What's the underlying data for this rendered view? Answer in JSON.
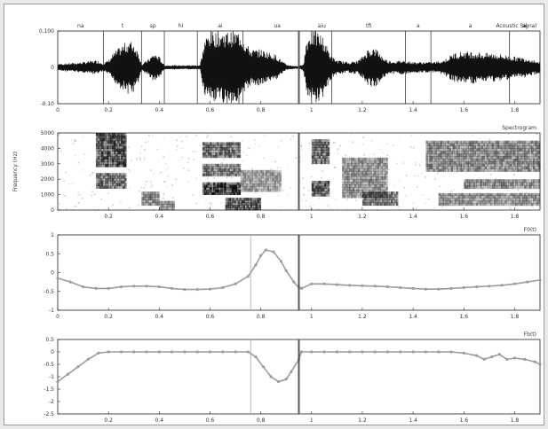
{
  "colors": {
    "ink": "#222222",
    "mark": "#9c9c9c",
    "divider": "#555555",
    "guide": "#b8b8b8",
    "frame": "#9a9a9a"
  },
  "segment_labels": [
    "na",
    "t",
    "sp",
    "hi",
    "ai",
    "ua",
    "aiu",
    "tfi",
    "a",
    "a",
    "ai",
    "ai"
  ],
  "segment_boundaries": [
    0.18,
    0.33,
    0.42,
    0.55,
    0.73,
    1.0,
    1.08,
    1.37,
    1.47,
    1.78
  ],
  "divider_time": 0.95,
  "chart_data": [
    {
      "type": "area",
      "name": "waveform",
      "title": "Acoustic Signal",
      "xlim": [
        0,
        1.9
      ],
      "ylim": [
        -0.1,
        0.1
      ],
      "yticks": [
        0.1,
        0,
        -0.1
      ],
      "ytick_labels": [
        "0.100",
        "0",
        "-0.10"
      ],
      "xticks": [
        0,
        0.2,
        0.4,
        0.6,
        0.8,
        1.0,
        1.2,
        1.4,
        1.6,
        1.8
      ],
      "xtick_labels": [
        "0",
        "0.2",
        "0.4",
        "0.6",
        "0.8",
        "1",
        "1.2",
        "1.4",
        "1.6",
        "1.8"
      ],
      "envelope": {
        "x": [
          0.0,
          0.05,
          0.1,
          0.15,
          0.18,
          0.2,
          0.22,
          0.25,
          0.28,
          0.3,
          0.32,
          0.33,
          0.36,
          0.38,
          0.4,
          0.42,
          0.44,
          0.48,
          0.52,
          0.56,
          0.58,
          0.6,
          0.62,
          0.64,
          0.66,
          0.68,
          0.7,
          0.72,
          0.74,
          0.76,
          0.78,
          0.8,
          0.82,
          0.84,
          0.86,
          0.88,
          0.9,
          0.92,
          0.94,
          0.95,
          0.96,
          0.97,
          0.98,
          1.0,
          1.02,
          1.04,
          1.06,
          1.08,
          1.1,
          1.14,
          1.18,
          1.2,
          1.22,
          1.24,
          1.26,
          1.28,
          1.3,
          1.32,
          1.34,
          1.36,
          1.38,
          1.4,
          1.44,
          1.48,
          1.52,
          1.56,
          1.6,
          1.64,
          1.68,
          1.72,
          1.76,
          1.8,
          1.84,
          1.88,
          1.9
        ],
        "y": [
          0.01,
          0.012,
          0.015,
          0.02,
          0.012,
          0.02,
          0.04,
          0.06,
          0.075,
          0.07,
          0.04,
          0.008,
          0.025,
          0.04,
          0.03,
          0.006,
          0.006,
          0.006,
          0.006,
          0.006,
          0.08,
          0.1,
          0.1,
          0.1,
          0.1,
          0.1,
          0.1,
          0.1,
          0.07,
          0.05,
          0.05,
          0.05,
          0.045,
          0.04,
          0.035,
          0.02,
          0.008,
          0.005,
          0.004,
          0.004,
          0.006,
          0.015,
          0.08,
          0.1,
          0.1,
          0.09,
          0.06,
          0.03,
          0.02,
          0.015,
          0.018,
          0.03,
          0.05,
          0.055,
          0.05,
          0.03,
          0.02,
          0.018,
          0.018,
          0.02,
          0.018,
          0.015,
          0.015,
          0.015,
          0.02,
          0.04,
          0.045,
          0.045,
          0.04,
          0.04,
          0.035,
          0.03,
          0.028,
          0.02,
          0.015
        ]
      }
    },
    {
      "type": "heatmap",
      "name": "spectrogram",
      "title": "Spectrogram",
      "xlim": [
        0,
        1.9
      ],
      "ylim": [
        0,
        5000
      ],
      "yticks": [
        0,
        1000,
        2000,
        3000,
        4000,
        5000
      ],
      "ytick_labels": [
        "0",
        "1000",
        "2000",
        "3000",
        "4000",
        "5000"
      ],
      "ylabel": "Frequency (Hz)",
      "xticks": [
        0.2,
        0.4,
        0.6,
        0.8,
        1.0,
        1.2,
        1.4,
        1.6,
        1.8
      ],
      "xtick_labels": [
        "0.2",
        "0.4",
        "0.6",
        "0.8",
        "1",
        "1.2",
        "1.4",
        "1.6",
        "1.8"
      ],
      "bands": [
        {
          "t0": 0.15,
          "t1": 0.27,
          "f0": 2800,
          "f1": 5000,
          "level": 0.85
        },
        {
          "t0": 0.15,
          "t1": 0.27,
          "f0": 1400,
          "f1": 2400,
          "level": 0.7
        },
        {
          "t0": 0.33,
          "t1": 0.4,
          "f0": 300,
          "f1": 1200,
          "level": 0.55
        },
        {
          "t0": 0.4,
          "t1": 0.46,
          "f0": 0,
          "f1": 600,
          "level": 0.5
        },
        {
          "t0": 0.57,
          "t1": 0.72,
          "f0": 3400,
          "f1": 4400,
          "level": 0.7
        },
        {
          "t0": 0.57,
          "t1": 0.72,
          "f0": 2200,
          "f1": 3000,
          "level": 0.65
        },
        {
          "t0": 0.57,
          "t1": 0.72,
          "f0": 1000,
          "f1": 1800,
          "level": 0.95
        },
        {
          "t0": 0.66,
          "t1": 0.8,
          "f0": 0,
          "f1": 800,
          "level": 0.8
        },
        {
          "t0": 0.72,
          "t1": 0.88,
          "f0": 1200,
          "f1": 2600,
          "level": 0.45
        },
        {
          "t0": 1.0,
          "t1": 1.07,
          "f0": 3000,
          "f1": 4600,
          "level": 0.7
        },
        {
          "t0": 1.0,
          "t1": 1.07,
          "f0": 900,
          "f1": 1900,
          "level": 0.8
        },
        {
          "t0": 1.12,
          "t1": 1.3,
          "f0": 800,
          "f1": 3400,
          "level": 0.5
        },
        {
          "t0": 1.2,
          "t1": 1.34,
          "f0": 300,
          "f1": 1200,
          "level": 0.65
        },
        {
          "t0": 1.45,
          "t1": 1.9,
          "f0": 2500,
          "f1": 4500,
          "level": 0.55
        },
        {
          "t0": 1.5,
          "t1": 1.9,
          "f0": 300,
          "f1": 1100,
          "level": 0.5
        },
        {
          "t0": 1.6,
          "t1": 1.9,
          "f0": 1400,
          "f1": 2000,
          "level": 0.55
        }
      ]
    },
    {
      "type": "line",
      "name": "pitch-track",
      "title": "F0(t)",
      "xlim": [
        0,
        1.9
      ],
      "ylim": [
        -1,
        1
      ],
      "yticks": [
        1,
        0.5,
        0,
        -0.5,
        -1
      ],
      "ytick_labels": [
        "1",
        "0.5",
        "0",
        "-0.5",
        "-1"
      ],
      "xticks": [
        0,
        0.2,
        0.4,
        0.6,
        0.8,
        1.0,
        1.2,
        1.4,
        1.6,
        1.8
      ],
      "xtick_labels": [
        "0",
        "0.2",
        "0.4",
        "0.6",
        "0.8",
        "1",
        "1.2",
        "1.4",
        "1.6",
        "1.8"
      ],
      "x": [
        0.0,
        0.05,
        0.1,
        0.15,
        0.2,
        0.25,
        0.3,
        0.35,
        0.4,
        0.45,
        0.5,
        0.55,
        0.6,
        0.65,
        0.7,
        0.75,
        0.78,
        0.8,
        0.82,
        0.85,
        0.88,
        0.9,
        0.93,
        0.95,
        0.96,
        1.0,
        1.05,
        1.1,
        1.15,
        1.2,
        1.25,
        1.3,
        1.35,
        1.4,
        1.45,
        1.5,
        1.55,
        1.6,
        1.65,
        1.7,
        1.75,
        1.8,
        1.85,
        1.9
      ],
      "y": [
        -0.15,
        -0.25,
        -0.38,
        -0.42,
        -0.42,
        -0.38,
        -0.36,
        -0.36,
        -0.38,
        -0.42,
        -0.45,
        -0.45,
        -0.44,
        -0.4,
        -0.3,
        -0.1,
        0.2,
        0.45,
        0.6,
        0.55,
        0.3,
        0.05,
        -0.25,
        -0.4,
        -0.42,
        -0.3,
        -0.3,
        -0.32,
        -0.34,
        -0.35,
        -0.36,
        -0.38,
        -0.4,
        -0.42,
        -0.44,
        -0.44,
        -0.42,
        -0.4,
        -0.38,
        -0.36,
        -0.34,
        -0.3,
        -0.25,
        -0.2
      ]
    },
    {
      "type": "line",
      "name": "step-track",
      "title": "Fb(t)",
      "xlim": [
        0,
        1.9
      ],
      "ylim": [
        -2.5,
        0.5
      ],
      "yticks": [
        0.5,
        0,
        -0.5,
        -1,
        -1.5,
        -2,
        -2.5
      ],
      "ytick_labels": [
        "0.5",
        "0",
        "-0.5",
        "-1",
        "-1.5",
        "-2",
        "-2.5"
      ],
      "xticks": [
        0.2,
        0.4,
        0.6,
        0.8,
        1.0,
        1.2,
        1.4,
        1.6,
        1.8
      ],
      "xtick_labels": [
        "0.2",
        "0.4",
        "0.6",
        "0.8",
        "1",
        "1.2",
        "1.4",
        "1.6",
        "1.8"
      ],
      "x": [
        0.0,
        0.04,
        0.08,
        0.12,
        0.16,
        0.2,
        0.25,
        0.3,
        0.35,
        0.4,
        0.45,
        0.5,
        0.55,
        0.6,
        0.65,
        0.7,
        0.75,
        0.78,
        0.81,
        0.84,
        0.87,
        0.9,
        0.92,
        0.95,
        0.96,
        1.0,
        1.05,
        1.1,
        1.15,
        1.2,
        1.25,
        1.3,
        1.35,
        1.4,
        1.45,
        1.5,
        1.55,
        1.6,
        1.65,
        1.68,
        1.71,
        1.74,
        1.77,
        1.8,
        1.84,
        1.88,
        1.9
      ],
      "y": [
        -1.2,
        -0.9,
        -0.6,
        -0.3,
        -0.05,
        0,
        0,
        0,
        0,
        0,
        0,
        0,
        0,
        0,
        0,
        0,
        0,
        -0.2,
        -0.6,
        -1.0,
        -1.2,
        -1.1,
        -0.8,
        -0.3,
        0,
        0,
        0,
        0,
        0,
        0,
        0,
        0,
        0,
        0,
        0,
        0,
        0,
        -0.05,
        -0.15,
        -0.3,
        -0.2,
        -0.1,
        -0.3,
        -0.25,
        -0.3,
        -0.4,
        -0.5
      ]
    }
  ]
}
